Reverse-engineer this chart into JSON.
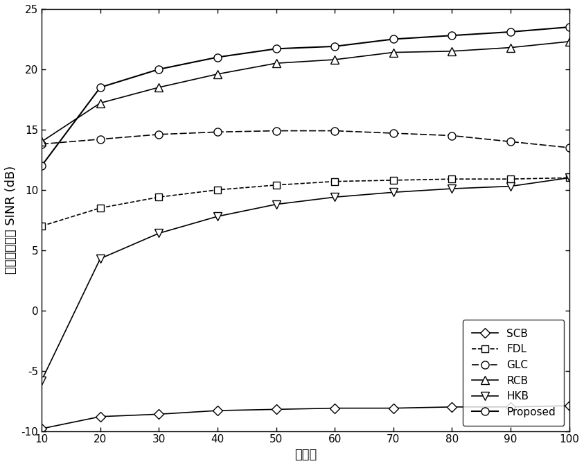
{
  "x": [
    10,
    20,
    30,
    40,
    50,
    60,
    70,
    80,
    90,
    100
  ],
  "SCB": [
    -9.8,
    -8.8,
    -8.6,
    -8.3,
    -8.2,
    -8.1,
    -8.1,
    -8.0,
    -8.0,
    -7.9
  ],
  "FDL": [
    7.0,
    8.5,
    9.4,
    10.0,
    10.4,
    10.7,
    10.8,
    10.9,
    10.9,
    11.0
  ],
  "GLC": [
    13.8,
    14.2,
    14.6,
    14.8,
    14.9,
    14.9,
    14.7,
    14.5,
    14.0,
    13.5
  ],
  "RCB": [
    14.0,
    17.2,
    18.5,
    19.6,
    20.5,
    20.8,
    21.4,
    21.5,
    21.8,
    22.3
  ],
  "HKB": [
    -5.8,
    4.3,
    6.4,
    7.8,
    8.8,
    9.4,
    9.8,
    10.1,
    10.3,
    11.0
  ],
  "Proposed": [
    12.0,
    18.5,
    20.0,
    21.0,
    21.7,
    21.9,
    22.5,
    22.8,
    23.1,
    23.5
  ],
  "xlabel": "快拍数",
  "ylabel": "输出信干噪比 SINR (dB)",
  "xlim": [
    10,
    100
  ],
  "ylim": [
    -10,
    25
  ],
  "yticks": [
    -10,
    -5,
    0,
    5,
    10,
    15,
    20,
    25
  ],
  "xticks": [
    10,
    20,
    30,
    40,
    50,
    60,
    70,
    80,
    90,
    100
  ],
  "legend_labels": [
    "SCB",
    "FDL",
    "GLC",
    "RCB",
    "HKB",
    "Proposed"
  ]
}
